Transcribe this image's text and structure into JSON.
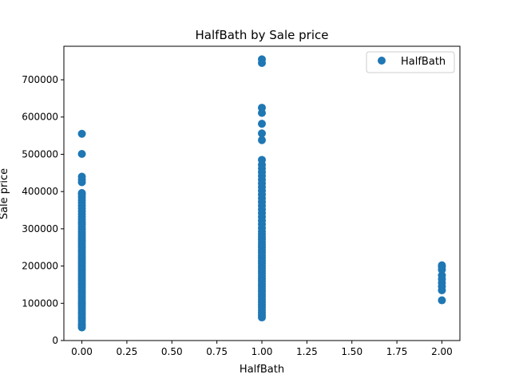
{
  "chart_data": {
    "type": "scatter",
    "title": "HalfBath by Sale price",
    "xlabel": "HalfBath",
    "ylabel": "Sale price",
    "xlim": [
      -0.1,
      2.1
    ],
    "ylim": [
      0,
      790000
    ],
    "xticks": [
      0.0,
      0.25,
      0.5,
      0.75,
      1.0,
      1.25,
      1.5,
      1.75,
      2.0
    ],
    "xtick_labels": [
      "0.00",
      "0.25",
      "0.50",
      "0.75",
      "1.00",
      "1.25",
      "1.50",
      "1.75",
      "2.00"
    ],
    "yticks": [
      0,
      100000,
      200000,
      300000,
      400000,
      500000,
      600000,
      700000
    ],
    "ytick_labels": [
      "0",
      "100000",
      "200000",
      "300000",
      "400000",
      "500000",
      "600000",
      "700000"
    ],
    "grid": false,
    "legend_position": "top-right",
    "series": [
      {
        "name": "HalfBath",
        "color": "#1f77b4",
        "points": [
          [
            0,
            35000
          ],
          [
            0,
            40000
          ],
          [
            0,
            45000
          ],
          [
            0,
            52000
          ],
          [
            0,
            58000
          ],
          [
            0,
            64000
          ],
          [
            0,
            70000
          ],
          [
            0,
            76000
          ],
          [
            0,
            82000
          ],
          [
            0,
            88000
          ],
          [
            0,
            94000
          ],
          [
            0,
            100000
          ],
          [
            0,
            106000
          ],
          [
            0,
            112000
          ],
          [
            0,
            118000
          ],
          [
            0,
            124000
          ],
          [
            0,
            130000
          ],
          [
            0,
            136000
          ],
          [
            0,
            142000
          ],
          [
            0,
            148000
          ],
          [
            0,
            154000
          ],
          [
            0,
            160000
          ],
          [
            0,
            166000
          ],
          [
            0,
            172000
          ],
          [
            0,
            178000
          ],
          [
            0,
            184000
          ],
          [
            0,
            190000
          ],
          [
            0,
            196000
          ],
          [
            0,
            202000
          ],
          [
            0,
            208000
          ],
          [
            0,
            214000
          ],
          [
            0,
            220000
          ],
          [
            0,
            226000
          ],
          [
            0,
            232000
          ],
          [
            0,
            238000
          ],
          [
            0,
            244000
          ],
          [
            0,
            250000
          ],
          [
            0,
            256000
          ],
          [
            0,
            262000
          ],
          [
            0,
            268000
          ],
          [
            0,
            274000
          ],
          [
            0,
            280000
          ],
          [
            0,
            286000
          ],
          [
            0,
            292000
          ],
          [
            0,
            298000
          ],
          [
            0,
            305000
          ],
          [
            0,
            312000
          ],
          [
            0,
            318000
          ],
          [
            0,
            325000
          ],
          [
            0,
            332000
          ],
          [
            0,
            340000
          ],
          [
            0,
            347000
          ],
          [
            0,
            355000
          ],
          [
            0,
            362000
          ],
          [
            0,
            370000
          ],
          [
            0,
            377000
          ],
          [
            0,
            385000
          ],
          [
            0,
            392000
          ],
          [
            0,
            396000
          ],
          [
            0,
            425000
          ],
          [
            0,
            432000
          ],
          [
            0,
            440000
          ],
          [
            0,
            501000
          ],
          [
            0,
            555000
          ],
          [
            1,
            62000
          ],
          [
            1,
            68000
          ],
          [
            1,
            75000
          ],
          [
            1,
            82000
          ],
          [
            1,
            89000
          ],
          [
            1,
            96000
          ],
          [
            1,
            103000
          ],
          [
            1,
            110000
          ],
          [
            1,
            117000
          ],
          [
            1,
            124000
          ],
          [
            1,
            131000
          ],
          [
            1,
            138000
          ],
          [
            1,
            145000
          ],
          [
            1,
            152000
          ],
          [
            1,
            159000
          ],
          [
            1,
            166000
          ],
          [
            1,
            173000
          ],
          [
            1,
            180000
          ],
          [
            1,
            187000
          ],
          [
            1,
            194000
          ],
          [
            1,
            201000
          ],
          [
            1,
            208000
          ],
          [
            1,
            215000
          ],
          [
            1,
            222000
          ],
          [
            1,
            229000
          ],
          [
            1,
            236000
          ],
          [
            1,
            243000
          ],
          [
            1,
            250000
          ],
          [
            1,
            257000
          ],
          [
            1,
            264000
          ],
          [
            1,
            271000
          ],
          [
            1,
            278000
          ],
          [
            1,
            285000
          ],
          [
            1,
            293000
          ],
          [
            1,
            302000
          ],
          [
            1,
            312000
          ],
          [
            1,
            322000
          ],
          [
            1,
            332000
          ],
          [
            1,
            342000
          ],
          [
            1,
            352000
          ],
          [
            1,
            362000
          ],
          [
            1,
            372000
          ],
          [
            1,
            382000
          ],
          [
            1,
            392000
          ],
          [
            1,
            402000
          ],
          [
            1,
            412000
          ],
          [
            1,
            422000
          ],
          [
            1,
            432000
          ],
          [
            1,
            442000
          ],
          [
            1,
            452000
          ],
          [
            1,
            462000
          ],
          [
            1,
            472000
          ],
          [
            1,
            485000
          ],
          [
            1,
            538000
          ],
          [
            1,
            556000
          ],
          [
            1,
            582000
          ],
          [
            1,
            611000
          ],
          [
            1,
            625000
          ],
          [
            1,
            745000
          ],
          [
            1,
            755000
          ],
          [
            2,
            108000
          ],
          [
            2,
            135000
          ],
          [
            2,
            145000
          ],
          [
            2,
            155000
          ],
          [
            2,
            165000
          ],
          [
            2,
            175000
          ],
          [
            2,
            190000
          ],
          [
            2,
            198000
          ],
          [
            2,
            202000
          ]
        ]
      }
    ]
  }
}
